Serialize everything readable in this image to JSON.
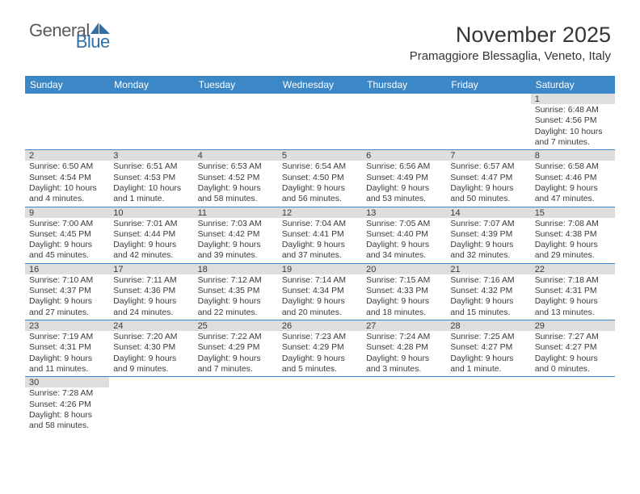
{
  "logo": {
    "text1": "General",
    "text2": "Blue"
  },
  "title": "November 2025",
  "location": "Pramaggiore Blessaglia, Veneto, Italy",
  "columns": [
    "Sunday",
    "Monday",
    "Tuesday",
    "Wednesday",
    "Thursday",
    "Friday",
    "Saturday"
  ],
  "colors": {
    "header_bg": "#3c87c6",
    "header_fg": "#ffffff",
    "daybar_bg": "#dedede",
    "text": "#3a3a3a",
    "rule": "#3c87c6",
    "logo_gray": "#5a5a5a",
    "logo_blue": "#2f6fa8"
  },
  "weeks": [
    [
      null,
      null,
      null,
      null,
      null,
      null,
      {
        "n": "1",
        "sr": "6:48 AM",
        "ss": "4:56 PM",
        "dl": "10 hours and 7 minutes."
      }
    ],
    [
      {
        "n": "2",
        "sr": "6:50 AM",
        "ss": "4:54 PM",
        "dl": "10 hours and 4 minutes."
      },
      {
        "n": "3",
        "sr": "6:51 AM",
        "ss": "4:53 PM",
        "dl": "10 hours and 1 minute."
      },
      {
        "n": "4",
        "sr": "6:53 AM",
        "ss": "4:52 PM",
        "dl": "9 hours and 58 minutes."
      },
      {
        "n": "5",
        "sr": "6:54 AM",
        "ss": "4:50 PM",
        "dl": "9 hours and 56 minutes."
      },
      {
        "n": "6",
        "sr": "6:56 AM",
        "ss": "4:49 PM",
        "dl": "9 hours and 53 minutes."
      },
      {
        "n": "7",
        "sr": "6:57 AM",
        "ss": "4:47 PM",
        "dl": "9 hours and 50 minutes."
      },
      {
        "n": "8",
        "sr": "6:58 AM",
        "ss": "4:46 PM",
        "dl": "9 hours and 47 minutes."
      }
    ],
    [
      {
        "n": "9",
        "sr": "7:00 AM",
        "ss": "4:45 PM",
        "dl": "9 hours and 45 minutes."
      },
      {
        "n": "10",
        "sr": "7:01 AM",
        "ss": "4:44 PM",
        "dl": "9 hours and 42 minutes."
      },
      {
        "n": "11",
        "sr": "7:03 AM",
        "ss": "4:42 PM",
        "dl": "9 hours and 39 minutes."
      },
      {
        "n": "12",
        "sr": "7:04 AM",
        "ss": "4:41 PM",
        "dl": "9 hours and 37 minutes."
      },
      {
        "n": "13",
        "sr": "7:05 AM",
        "ss": "4:40 PM",
        "dl": "9 hours and 34 minutes."
      },
      {
        "n": "14",
        "sr": "7:07 AM",
        "ss": "4:39 PM",
        "dl": "9 hours and 32 minutes."
      },
      {
        "n": "15",
        "sr": "7:08 AM",
        "ss": "4:38 PM",
        "dl": "9 hours and 29 minutes."
      }
    ],
    [
      {
        "n": "16",
        "sr": "7:10 AM",
        "ss": "4:37 PM",
        "dl": "9 hours and 27 minutes."
      },
      {
        "n": "17",
        "sr": "7:11 AM",
        "ss": "4:36 PM",
        "dl": "9 hours and 24 minutes."
      },
      {
        "n": "18",
        "sr": "7:12 AM",
        "ss": "4:35 PM",
        "dl": "9 hours and 22 minutes."
      },
      {
        "n": "19",
        "sr": "7:14 AM",
        "ss": "4:34 PM",
        "dl": "9 hours and 20 minutes."
      },
      {
        "n": "20",
        "sr": "7:15 AM",
        "ss": "4:33 PM",
        "dl": "9 hours and 18 minutes."
      },
      {
        "n": "21",
        "sr": "7:16 AM",
        "ss": "4:32 PM",
        "dl": "9 hours and 15 minutes."
      },
      {
        "n": "22",
        "sr": "7:18 AM",
        "ss": "4:31 PM",
        "dl": "9 hours and 13 minutes."
      }
    ],
    [
      {
        "n": "23",
        "sr": "7:19 AM",
        "ss": "4:31 PM",
        "dl": "9 hours and 11 minutes."
      },
      {
        "n": "24",
        "sr": "7:20 AM",
        "ss": "4:30 PM",
        "dl": "9 hours and 9 minutes."
      },
      {
        "n": "25",
        "sr": "7:22 AM",
        "ss": "4:29 PM",
        "dl": "9 hours and 7 minutes."
      },
      {
        "n": "26",
        "sr": "7:23 AM",
        "ss": "4:29 PM",
        "dl": "9 hours and 5 minutes."
      },
      {
        "n": "27",
        "sr": "7:24 AM",
        "ss": "4:28 PM",
        "dl": "9 hours and 3 minutes."
      },
      {
        "n": "28",
        "sr": "7:25 AM",
        "ss": "4:27 PM",
        "dl": "9 hours and 1 minute."
      },
      {
        "n": "29",
        "sr": "7:27 AM",
        "ss": "4:27 PM",
        "dl": "9 hours and 0 minutes."
      }
    ],
    [
      {
        "n": "30",
        "sr": "7:28 AM",
        "ss": "4:26 PM",
        "dl": "8 hours and 58 minutes."
      },
      null,
      null,
      null,
      null,
      null,
      null
    ]
  ]
}
